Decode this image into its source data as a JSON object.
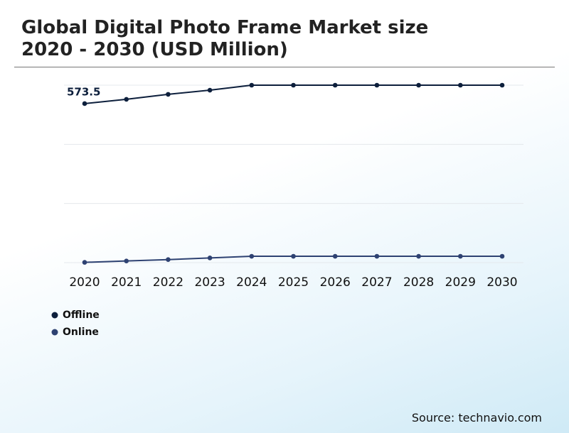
{
  "chart_data": {
    "type": "line",
    "title": "Global Digital Photo Frame Market size 2020 - 2030 (USD Million)",
    "source": "Source: technavio.com",
    "x": [
      "2020",
      "2021",
      "2022",
      "2023",
      "2024",
      "2025",
      "2026",
      "2027",
      "2028",
      "2029",
      "2030"
    ],
    "series": [
      {
        "name": "Offline",
        "color": "#0d1f3c",
        "values": [
          573.5,
          589,
          607,
          622,
          640,
          640,
          640,
          640,
          640,
          640,
          640
        ]
      },
      {
        "name": "Online",
        "color": "#2e4272",
        "values": [
          1,
          6,
          11,
          17,
          23,
          23,
          23,
          23,
          23,
          23,
          23
        ]
      }
    ],
    "ylim": [
      0,
      640
    ],
    "grid": true
  }
}
